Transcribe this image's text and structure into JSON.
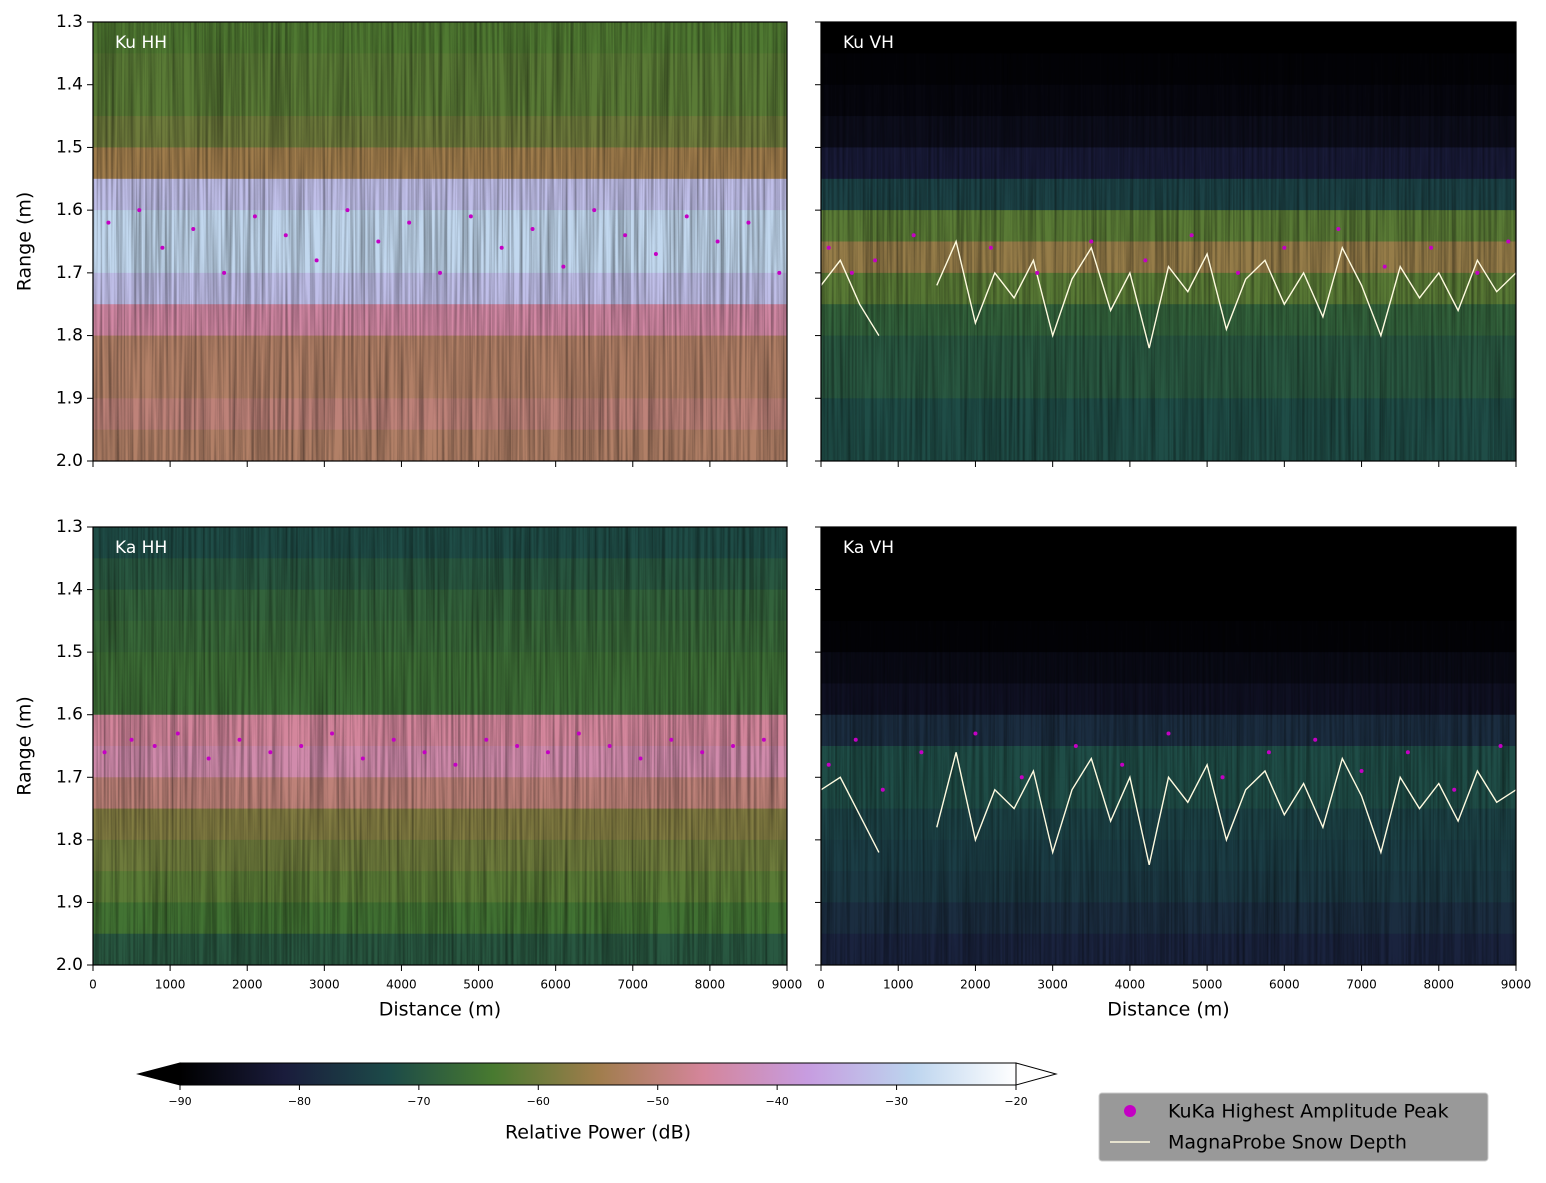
{
  "chart_data": [
    {
      "type": "heatmap",
      "label": "Ku HH",
      "ylabel": "Range (m)",
      "xlim": [
        0,
        9000
      ],
      "ylim": [
        1.3,
        2.0
      ],
      "y_inverted": true,
      "yticks": [
        1.3,
        1.4,
        1.5,
        1.6,
        1.7,
        1.8,
        1.9,
        {
          "value": 2,
          "label": "2.0"
        }
      ],
      "range_bins": [
        1.3,
        1.35,
        1.4,
        1.45,
        1.5,
        1.55,
        1.6,
        1.65,
        1.7,
        1.75,
        1.8,
        1.85,
        1.9,
        1.95,
        2.0
      ],
      "power": [
        -63,
        -62,
        -62,
        -60,
        -55,
        -32,
        -28,
        -28,
        -32,
        -45,
        -52,
        -52,
        -50,
        -52
      ],
      "peaks": {
        "x": [
          200,
          600,
          900,
          1300,
          1700,
          2100,
          2500,
          2900,
          3300,
          3700,
          4100,
          4500,
          4900,
          5300,
          5700,
          6100,
          6500,
          6900,
          7300,
          7700,
          8100,
          8500,
          8900
        ],
        "values": [
          1.62,
          1.6,
          1.66,
          1.63,
          1.7,
          1.61,
          1.64,
          1.68,
          1.6,
          1.65,
          1.62,
          1.7,
          1.61,
          1.66,
          1.63,
          1.69,
          1.6,
          1.64,
          1.67,
          1.61,
          1.65,
          1.62,
          1.7
        ]
      }
    },
    {
      "type": "heatmap",
      "label": "Ku VH",
      "xlim": [
        0,
        9000
      ],
      "ylim": [
        1.3,
        2.0
      ],
      "y_inverted": true,
      "range_bins": [
        1.3,
        1.35,
        1.4,
        1.45,
        1.5,
        1.55,
        1.6,
        1.65,
        1.7,
        1.75,
        1.8,
        1.85,
        1.9,
        1.95,
        2.0
      ],
      "power": [
        -90,
        -89,
        -88,
        -86,
        -82,
        -74,
        -62,
        -56,
        -62,
        -68,
        -70,
        -70,
        -72,
        -72
      ],
      "peaks": {
        "x": [
          100,
          400,
          700,
          1200,
          2200,
          2800,
          3500,
          4200,
          4800,
          5400,
          6000,
          6700,
          7300,
          7900,
          8500,
          8900
        ],
        "values": [
          1.66,
          1.7,
          1.68,
          1.64,
          1.66,
          1.7,
          1.65,
          1.68,
          1.64,
          1.7,
          1.66,
          1.63,
          1.69,
          1.66,
          1.7,
          1.65
        ]
      },
      "snow_depth": {
        "x": [
          0,
          250,
          500,
          750,
          1000,
          1250,
          1500,
          1750,
          2000,
          2250,
          2500,
          2750,
          3000,
          3250,
          3500,
          3750,
          4000,
          4250,
          4500,
          4750,
          5000,
          5250,
          5500,
          5750,
          6000,
          6250,
          6500,
          6750,
          7000,
          7250,
          7500,
          7750,
          8000,
          8250,
          8500,
          8750,
          9000
        ],
        "values": [
          1.72,
          1.68,
          1.75,
          1.8,
          null,
          null,
          1.72,
          1.65,
          1.78,
          1.7,
          1.74,
          1.68,
          1.8,
          1.71,
          1.66,
          1.76,
          1.7,
          1.82,
          1.69,
          1.73,
          1.67,
          1.79,
          1.71,
          1.68,
          1.75,
          1.7,
          1.77,
          1.66,
          1.72,
          1.8,
          1.69,
          1.74,
          1.7,
          1.76,
          1.68,
          1.73,
          1.7
        ]
      }
    },
    {
      "type": "heatmap",
      "label": "Ka HH",
      "ylabel": "Range (m)",
      "xlabel": "Distance (m)",
      "xlim": [
        0,
        9000
      ],
      "ylim": [
        1.3,
        2.0
      ],
      "y_inverted": true,
      "xticks": [
        0,
        1000,
        2000,
        3000,
        4000,
        5000,
        6000,
        7000,
        8000,
        9000
      ],
      "yticks": [
        1.3,
        1.4,
        1.5,
        1.6,
        1.7,
        1.8,
        1.9,
        {
          "value": 2,
          "label": "2.0"
        }
      ],
      "range_bins": [
        1.3,
        1.35,
        1.4,
        1.45,
        1.5,
        1.55,
        1.6,
        1.65,
        1.7,
        1.75,
        1.8,
        1.85,
        1.9,
        1.95,
        2.0
      ],
      "power": [
        -72,
        -70,
        -68,
        -67,
        -66,
        -66,
        -46,
        -44,
        -50,
        -58,
        -60,
        -62,
        -65,
        -70
      ],
      "peaks": {
        "x": [
          150,
          500,
          800,
          1100,
          1500,
          1900,
          2300,
          2700,
          3100,
          3500,
          3900,
          4300,
          4700,
          5100,
          5500,
          5900,
          6300,
          6700,
          7100,
          7500,
          7900,
          8300,
          8700
        ],
        "values": [
          1.66,
          1.64,
          1.65,
          1.63,
          1.67,
          1.64,
          1.66,
          1.65,
          1.63,
          1.67,
          1.64,
          1.66,
          1.68,
          1.64,
          1.65,
          1.66,
          1.63,
          1.65,
          1.67,
          1.64,
          1.66,
          1.65,
          1.64
        ]
      }
    },
    {
      "type": "heatmap",
      "label": "Ka VH",
      "xlabel": "Distance (m)",
      "xlim": [
        0,
        9000
      ],
      "ylim": [
        1.3,
        2.0
      ],
      "y_inverted": true,
      "xticks": [
        0,
        1000,
        2000,
        3000,
        4000,
        5000,
        6000,
        7000,
        8000,
        9000
      ],
      "range_bins": [
        1.3,
        1.35,
        1.4,
        1.45,
        1.5,
        1.55,
        1.6,
        1.65,
        1.7,
        1.75,
        1.8,
        1.85,
        1.9,
        1.95,
        2.0
      ],
      "power": [
        -90,
        -90,
        -90,
        -89,
        -87,
        -85,
        -78,
        -72,
        -72,
        -74,
        -75,
        -76,
        -78,
        -80
      ],
      "peaks": {
        "x": [
          100,
          450,
          800,
          1300,
          2000,
          2600,
          3300,
          3900,
          4500,
          5200,
          5800,
          6400,
          7000,
          7600,
          8200,
          8800
        ],
        "values": [
          1.68,
          1.64,
          1.72,
          1.66,
          1.63,
          1.7,
          1.65,
          1.68,
          1.63,
          1.7,
          1.66,
          1.64,
          1.69,
          1.66,
          1.72,
          1.65
        ]
      },
      "snow_depth": {
        "x": [
          0,
          250,
          500,
          750,
          1000,
          1250,
          1500,
          1750,
          2000,
          2250,
          2500,
          2750,
          3000,
          3250,
          3500,
          3750,
          4000,
          4250,
          4500,
          4750,
          5000,
          5250,
          5500,
          5750,
          6000,
          6250,
          6500,
          6750,
          7000,
          7250,
          7500,
          7750,
          8000,
          8250,
          8500,
          8750,
          9000
        ],
        "values": [
          1.72,
          1.7,
          1.76,
          1.82,
          null,
          null,
          1.78,
          1.66,
          1.8,
          1.72,
          1.75,
          1.69,
          1.82,
          1.72,
          1.67,
          1.77,
          1.7,
          1.84,
          1.7,
          1.74,
          1.68,
          1.8,
          1.72,
          1.69,
          1.76,
          1.71,
          1.78,
          1.67,
          1.73,
          1.82,
          1.7,
          1.75,
          1.71,
          1.77,
          1.69,
          1.74,
          1.72
        ]
      }
    }
  ],
  "colorbar": {
    "label": "Relative Power (dB)",
    "lim": [
      -90,
      -20
    ],
    "ticks": [
      {
        "value": -90,
        "label": "−90"
      },
      {
        "value": -80,
        "label": "−80"
      },
      {
        "value": -70,
        "label": "−70"
      },
      {
        "value": -60,
        "label": "−60"
      },
      {
        "value": -50,
        "label": "−50"
      },
      {
        "value": -40,
        "label": "−40"
      },
      {
        "value": -30,
        "label": "−30"
      },
      {
        "value": -20,
        "label": "−20"
      }
    ],
    "colormap": [
      "#000000",
      "#1a1c3c",
      "#1c4a48",
      "#487a30",
      "#a07d4c",
      "#d4859a",
      "#c79ce0",
      "#bcd4ee",
      "#ffffff"
    ]
  },
  "legend": [
    {
      "label": "KuKa Highest Amplitude Peak",
      "color": "#c400c4"
    },
    {
      "label": "MagnaProbe Snow Depth",
      "color": "#fffbe0"
    }
  ]
}
